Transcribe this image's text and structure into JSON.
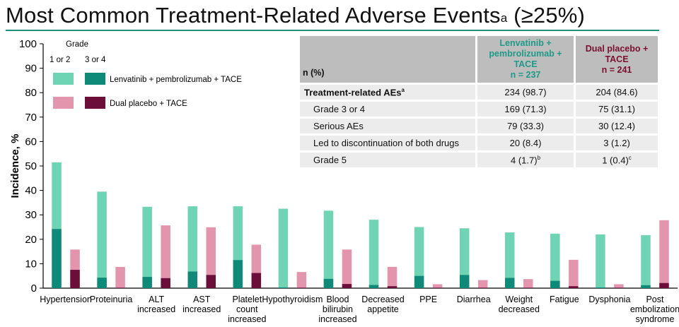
{
  "title": {
    "text": "Most Common Treatment-Related Adverse Events",
    "sup": "a",
    "suffix": " (≥25%)"
  },
  "table": {
    "header": {
      "col0": "n (%)",
      "col1": [
        "Lenvatinib +",
        "pembrolizumab +",
        "TACE",
        "n = 237"
      ],
      "col2": [
        "Dual placebo +",
        "TACE",
        "n = 241"
      ]
    },
    "rows": [
      {
        "label": "Treatment-related AEs",
        "label_sup": "a",
        "v1": "234 (98.7)",
        "v2": "204 (84.6)"
      },
      {
        "label": "Grade 3 or 4",
        "v1": "169 (71.3)",
        "v2": "75 (31.1)"
      },
      {
        "label": "Serious AEs",
        "v1": "79 (33.3)",
        "v2": "30 (12.4)"
      },
      {
        "label": "Led to discontinuation of both drugs",
        "v1": "20 (8.4)",
        "v2": "3 (1.2)"
      },
      {
        "label": "Grade 5",
        "v1": "4 (1.7)",
        "v1_sup": "b",
        "v2": "1 (0.4)",
        "v2_sup": "c"
      }
    ]
  },
  "chart_data": {
    "type": "bar",
    "ylabel": "Incidence, %",
    "ylim": [
      0,
      100
    ],
    "yticks": [
      0,
      10,
      20,
      30,
      40,
      50,
      60,
      70,
      80,
      90,
      100
    ],
    "legend": {
      "title": "Grade",
      "col_labels": [
        "1 or 2",
        "3 or 4"
      ],
      "entries": [
        "Lenvatinib + pembrolizumab + TACE",
        "Dual placebo + TACE"
      ]
    },
    "colors": {
      "lenv_any": "#6fd4b3",
      "lenv_g34": "#0f8a78",
      "pbo_any": "#e295ad",
      "pbo_g34": "#6b0f3a"
    },
    "categories": [
      [
        "Hypertension"
      ],
      [
        "Proteinuria"
      ],
      [
        "ALT",
        "increased"
      ],
      [
        "AST",
        "increased"
      ],
      [
        "Platelet",
        "count",
        "increased"
      ],
      [
        "Hypothyroidism"
      ],
      [
        "Blood",
        "bilirubin",
        "increased"
      ],
      [
        "Decreased",
        "appetite"
      ],
      [
        "PPE"
      ],
      [
        "Diarrhea"
      ],
      [
        "Weight",
        "decreased"
      ],
      [
        "Fatigue"
      ],
      [
        "Dysphonia"
      ],
      [
        "Post",
        "embolization",
        "syndrome"
      ]
    ],
    "series": [
      {
        "name": "Lenvatinib + pembrolizumab + TACE",
        "total": [
          51.5,
          39.5,
          33.3,
          33.5,
          33.5,
          32.5,
          31.7,
          28,
          25,
          24.5,
          22.8,
          22.3,
          22,
          21.7
        ],
        "grade34": [
          24.2,
          4.3,
          4.6,
          6.8,
          11.5,
          0.3,
          3.8,
          1.3,
          5,
          5.4,
          4.2,
          3,
          0.3,
          1.2
        ]
      },
      {
        "name": "Dual placebo + TACE",
        "total": [
          15.8,
          8.7,
          25.7,
          24.9,
          17.8,
          6.6,
          15.8,
          8.7,
          1.6,
          3.3,
          3.7,
          11.6,
          1.6,
          27.8
        ],
        "grade34": [
          7.5,
          0.2,
          4.1,
          5.4,
          6.2,
          0.2,
          1.7,
          0.8,
          0.2,
          0.2,
          0.2,
          0.8,
          0.2,
          2.1
        ]
      }
    ]
  }
}
